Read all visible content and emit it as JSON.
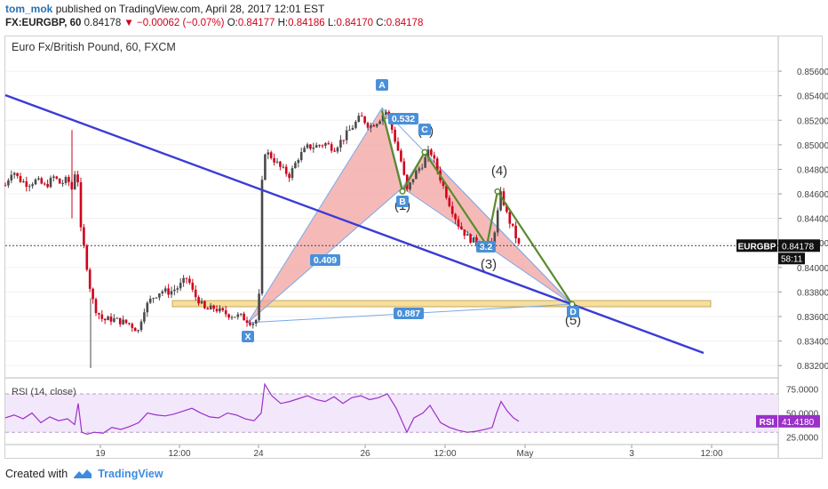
{
  "header": {
    "author": "tom_mok",
    "published_text": "published on TradingView.com, April 28, 2017 12:01 EST",
    "symbol": "FX:EURGBP, 60",
    "last": "0.84178",
    "change": "−0.00062 (−0.07%)",
    "open_label": "O:",
    "open": "0.84177",
    "high_label": "H:",
    "high": "0.84186",
    "low_label": "L:",
    "low": "0.84170",
    "close_label": "C:",
    "close": "0.84178"
  },
  "footer": {
    "created_with": "Created with",
    "brand": "TradingView"
  },
  "colors": {
    "up": "#4a4a4a",
    "down": "#d0021b",
    "trendline": "#3b3bd6",
    "pattern_fill": "#f2a3a0",
    "pattern_edge": "#7aa9e8",
    "wave": "#5a8a2e",
    "zone_fill": "#f5df9e",
    "rsi": "#9b30c9",
    "rsi_band": "#f3e7fb",
    "label_bg": "#4a90d9"
  },
  "chart_data": [
    {
      "type": "candlestick",
      "title": "Euro Fx/British Pound, 60, FXCM",
      "ylim": [
        0.831,
        0.8576
      ],
      "y_ticks": [
        "0.85600",
        "0.85400",
        "0.85200",
        "0.85000",
        "0.84800",
        "0.84600",
        "0.84400",
        "0.84200",
        "0.84000",
        "0.83800",
        "0.83600",
        "0.83400",
        "0.83200"
      ],
      "x_ticks": [
        "19",
        "12:00",
        "24",
        "26",
        "12:00",
        "May",
        "3",
        "12:00"
      ],
      "price_series": [
        [
          0,
          0.8467
        ],
        [
          8,
          0.848
        ],
        [
          15,
          0.8472
        ],
        [
          25,
          0.8468
        ],
        [
          35,
          0.8471
        ],
        [
          45,
          0.8466
        ],
        [
          55,
          0.8474
        ],
        [
          62,
          0.8468
        ],
        [
          70,
          0.8472
        ],
        [
          76,
          0.8462
        ],
        [
          80,
          0.849
        ],
        [
          85,
          0.843
        ],
        [
          90,
          0.841
        ],
        [
          95,
          0.8385
        ],
        [
          100,
          0.8368
        ],
        [
          110,
          0.8357
        ],
        [
          120,
          0.8358
        ],
        [
          130,
          0.8356
        ],
        [
          140,
          0.8354
        ],
        [
          150,
          0.8348
        ],
        [
          155,
          0.8365
        ],
        [
          165,
          0.8375
        ],
        [
          175,
          0.8381
        ],
        [
          185,
          0.838
        ],
        [
          195,
          0.8384
        ],
        [
          205,
          0.8392
        ],
        [
          212,
          0.8378
        ],
        [
          218,
          0.8373
        ],
        [
          225,
          0.8365
        ],
        [
          235,
          0.8367
        ],
        [
          245,
          0.8363
        ],
        [
          255,
          0.8361
        ],
        [
          265,
          0.836
        ],
        [
          275,
          0.8356
        ],
        [
          280,
          0.8355
        ],
        [
          285,
          0.836
        ],
        [
          290,
          0.8496
        ],
        [
          300,
          0.849
        ],
        [
          310,
          0.8481
        ],
        [
          320,
          0.8475
        ],
        [
          330,
          0.849
        ],
        [
          340,
          0.8498
        ],
        [
          350,
          0.8499
        ],
        [
          360,
          0.8501
        ],
        [
          370,
          0.8497
        ],
        [
          380,
          0.8505
        ],
        [
          390,
          0.8514
        ],
        [
          400,
          0.8523
        ],
        [
          410,
          0.8515
        ],
        [
          420,
          0.852
        ],
        [
          428,
          0.8528
        ],
        [
          435,
          0.8513
        ],
        [
          445,
          0.8488
        ],
        [
          452,
          0.8462
        ],
        [
          460,
          0.8475
        ],
        [
          470,
          0.8485
        ],
        [
          478,
          0.8496
        ],
        [
          490,
          0.8472
        ],
        [
          500,
          0.8452
        ],
        [
          510,
          0.8435
        ],
        [
          520,
          0.8425
        ],
        [
          530,
          0.842
        ],
        [
          540,
          0.8418
        ],
        [
          548,
          0.8419
        ],
        [
          553,
          0.844
        ],
        [
          558,
          0.8461
        ],
        [
          565,
          0.8442
        ],
        [
          572,
          0.843
        ],
        [
          578,
          0.8418
        ]
      ],
      "current_price": "0.84178",
      "price_label": "EURGBP",
      "countdown": "58:11",
      "harmonic_pattern": {
        "points": {
          "X": 0.8355,
          "A": 0.853,
          "B": 0.8465,
          "C": 0.8494,
          "D": 0.837
        },
        "ratios": [
          "0.532",
          "0.409",
          "3.2",
          "0.887"
        ]
      },
      "elliott_waves": [
        "(1)",
        "(2)",
        "(3)",
        "(4)",
        "(5)"
      ]
    },
    {
      "type": "line",
      "title": "RSI (14, close)",
      "ylim": [
        20,
        82
      ],
      "y_ticks": [
        "75.0000",
        "50.0000",
        "25.0000"
      ],
      "bands": [
        30,
        70
      ],
      "current_value": "41.4180",
      "value_label": "RSI",
      "values": [
        [
          0,
          45
        ],
        [
          10,
          48
        ],
        [
          20,
          44
        ],
        [
          30,
          50
        ],
        [
          40,
          40
        ],
        [
          50,
          46
        ],
        [
          60,
          42
        ],
        [
          70,
          44
        ],
        [
          78,
          38
        ],
        [
          82,
          60
        ],
        [
          86,
          30
        ],
        [
          92,
          28
        ],
        [
          100,
          30
        ],
        [
          110,
          29
        ],
        [
          120,
          35
        ],
        [
          130,
          33
        ],
        [
          140,
          36
        ],
        [
          150,
          40
        ],
        [
          160,
          50
        ],
        [
          170,
          48
        ],
        [
          180,
          47
        ],
        [
          190,
          49
        ],
        [
          200,
          52
        ],
        [
          210,
          55
        ],
        [
          220,
          50
        ],
        [
          230,
          46
        ],
        [
          240,
          45
        ],
        [
          250,
          50
        ],
        [
          260,
          48
        ],
        [
          270,
          44
        ],
        [
          280,
          42
        ],
        [
          288,
          50
        ],
        [
          292,
          80
        ],
        [
          300,
          68
        ],
        [
          310,
          60
        ],
        [
          320,
          62
        ],
        [
          330,
          65
        ],
        [
          340,
          68
        ],
        [
          350,
          64
        ],
        [
          360,
          62
        ],
        [
          370,
          67
        ],
        [
          380,
          60
        ],
        [
          390,
          66
        ],
        [
          400,
          68
        ],
        [
          410,
          64
        ],
        [
          420,
          66
        ],
        [
          430,
          70
        ],
        [
          440,
          55
        ],
        [
          452,
          30
        ],
        [
          460,
          45
        ],
        [
          470,
          50
        ],
        [
          478,
          58
        ],
        [
          490,
          40
        ],
        [
          500,
          35
        ],
        [
          510,
          32
        ],
        [
          520,
          30
        ],
        [
          530,
          31
        ],
        [
          540,
          33
        ],
        [
          548,
          35
        ],
        [
          553,
          50
        ],
        [
          558,
          62
        ],
        [
          565,
          52
        ],
        [
          572,
          45
        ],
        [
          578,
          41.4
        ]
      ]
    }
  ]
}
